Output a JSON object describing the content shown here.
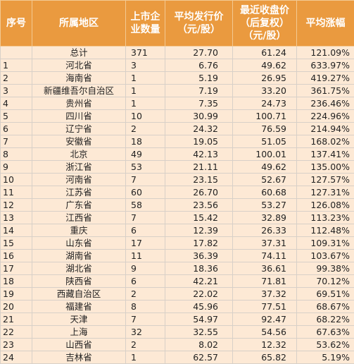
{
  "table": {
    "headers": {
      "index": "序号",
      "region": "所属地区",
      "count": [
        "上市企",
        "业数量"
      ],
      "issue_price": [
        "平均发行价",
        "（元/股）"
      ],
      "close_price": [
        "最近收盘价",
        "（后复权）",
        "（元/股）"
      ],
      "gain": "平均涨幅"
    },
    "rows": [
      {
        "index": "",
        "region": "总计",
        "count": "371",
        "issue_price": "27.70",
        "close_price": "61.24",
        "gain": "121.09%"
      },
      {
        "index": "1",
        "region": "河北省",
        "count": "3",
        "issue_price": "6.76",
        "close_price": "49.62",
        "gain": "633.97%"
      },
      {
        "index": "2",
        "region": "海南省",
        "count": "1",
        "issue_price": "5.19",
        "close_price": "26.95",
        "gain": "419.27%"
      },
      {
        "index": "3",
        "region": "新疆维吾尔自治区",
        "count": "1",
        "issue_price": "7.19",
        "close_price": "33.20",
        "gain": "361.75%"
      },
      {
        "index": "4",
        "region": "贵州省",
        "count": "1",
        "issue_price": "7.35",
        "close_price": "24.73",
        "gain": "236.46%"
      },
      {
        "index": "5",
        "region": "四川省",
        "count": "10",
        "issue_price": "30.99",
        "close_price": "100.71",
        "gain": "224.96%"
      },
      {
        "index": "6",
        "region": "辽宁省",
        "count": "2",
        "issue_price": "24.32",
        "close_price": "76.59",
        "gain": "214.94%"
      },
      {
        "index": "7",
        "region": "安徽省",
        "count": "18",
        "issue_price": "19.05",
        "close_price": "51.05",
        "gain": "168.02%"
      },
      {
        "index": "8",
        "region": "北京",
        "count": "49",
        "issue_price": "42.13",
        "close_price": "100.01",
        "gain": "137.41%"
      },
      {
        "index": "9",
        "region": "浙江省",
        "count": "53",
        "issue_price": "21.11",
        "close_price": "49.62",
        "gain": "135.00%"
      },
      {
        "index": "10",
        "region": "河南省",
        "count": "7",
        "issue_price": "23.15",
        "close_price": "52.67",
        "gain": "127.57%"
      },
      {
        "index": "11",
        "region": "江苏省",
        "count": "60",
        "issue_price": "26.70",
        "close_price": "60.68",
        "gain": "127.31%"
      },
      {
        "index": "12",
        "region": "广东省",
        "count": "58",
        "issue_price": "23.56",
        "close_price": "53.27",
        "gain": "126.08%"
      },
      {
        "index": "13",
        "region": "江西省",
        "count": "7",
        "issue_price": "15.42",
        "close_price": "32.89",
        "gain": "113.23%"
      },
      {
        "index": "14",
        "region": "重庆",
        "count": "6",
        "issue_price": "12.39",
        "close_price": "26.33",
        "gain": "112.48%"
      },
      {
        "index": "15",
        "region": "山东省",
        "count": "17",
        "issue_price": "17.82",
        "close_price": "37.31",
        "gain": "109.31%"
      },
      {
        "index": "16",
        "region": "湖南省",
        "count": "11",
        "issue_price": "36.39",
        "close_price": "74.11",
        "gain": "103.67%"
      },
      {
        "index": "17",
        "region": "湖北省",
        "count": "9",
        "issue_price": "18.36",
        "close_price": "36.61",
        "gain": "99.38%"
      },
      {
        "index": "18",
        "region": "陕西省",
        "count": "6",
        "issue_price": "42.21",
        "close_price": "71.81",
        "gain": "70.12%"
      },
      {
        "index": "19",
        "region": "西藏自治区",
        "count": "2",
        "issue_price": "22.02",
        "close_price": "37.32",
        "gain": "69.51%"
      },
      {
        "index": "20",
        "region": "福建省",
        "count": "8",
        "issue_price": "45.96",
        "close_price": "77.51",
        "gain": "68.67%"
      },
      {
        "index": "21",
        "region": "天津",
        "count": "7",
        "issue_price": "54.97",
        "close_price": "92.47",
        "gain": "68.22%"
      },
      {
        "index": "22",
        "region": "上海",
        "count": "32",
        "issue_price": "32.55",
        "close_price": "54.56",
        "gain": "67.63%"
      },
      {
        "index": "23",
        "region": "山西省",
        "count": "2",
        "issue_price": "8.02",
        "close_price": "12.32",
        "gain": "53.62%"
      },
      {
        "index": "24",
        "region": "吉林省",
        "count": "1",
        "issue_price": "62.57",
        "close_price": "65.82",
        "gain": "5.19%"
      }
    ]
  },
  "colors": {
    "header_bg": "#ea9a3f",
    "header_text": "#ffffff",
    "row_bg": "#fde9d5",
    "grid": "#d8d0c8"
  }
}
